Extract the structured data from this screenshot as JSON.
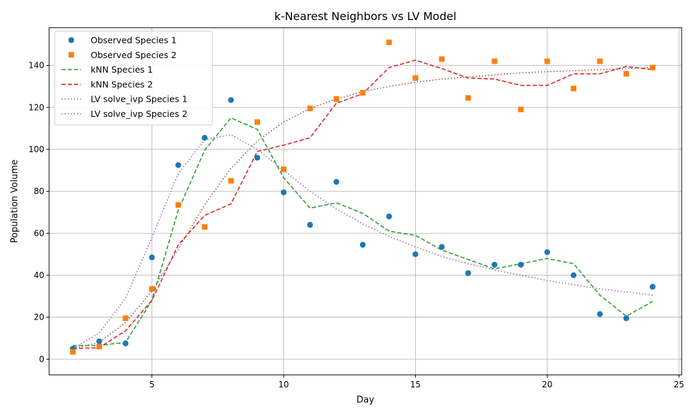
{
  "chart_data": {
    "type": "line",
    "title": "k-Nearest Neighbors vs LV Model",
    "xlabel": "Day",
    "ylabel": "Population Volume",
    "xlim": [
      1.1,
      25.1
    ],
    "ylim": [
      -7.5,
      158.0
    ],
    "xticks": [
      5,
      10,
      15,
      20,
      25
    ],
    "yticks": [
      0,
      20,
      40,
      60,
      80,
      100,
      120,
      140
    ],
    "grid": true,
    "legend_position": "top-left",
    "series": [
      {
        "name": "Observed Species 1",
        "style": "marker-circle",
        "color": "#1f77b4",
        "x": [
          2,
          3,
          4,
          5,
          6,
          7,
          8,
          9,
          10,
          11,
          12,
          13,
          14,
          15,
          16,
          17,
          18,
          19,
          20,
          21,
          22,
          23,
          24
        ],
        "y": [
          5.0,
          8.5,
          7.5,
          48.5,
          92.5,
          105.5,
          123.5,
          96.0,
          79.5,
          64.0,
          84.5,
          54.5,
          68.0,
          50.0,
          53.5,
          41.0,
          45.0,
          45.0,
          51.0,
          40.0,
          21.5,
          19.5,
          34.5
        ]
      },
      {
        "name": "Observed Species 2",
        "style": "marker-square",
        "color": "#ff7f0e",
        "x": [
          2,
          3,
          4,
          5,
          6,
          7,
          8,
          9,
          10,
          11,
          12,
          13,
          14,
          15,
          16,
          17,
          18,
          19,
          20,
          21,
          22,
          23,
          24
        ],
        "y": [
          3.5,
          6.0,
          19.5,
          33.5,
          73.5,
          63.0,
          85.0,
          113.0,
          90.5,
          119.5,
          124.0,
          127.0,
          151.0,
          134.0,
          143.0,
          124.5,
          142.0,
          119.0,
          142.0,
          129.0,
          142.0,
          136.0,
          139.0
        ]
      },
      {
        "name": "kNN Species 1",
        "style": "dashed",
        "color": "#2ca02c",
        "x": [
          2,
          3,
          4,
          5,
          6,
          7,
          8,
          9,
          10,
          11,
          12,
          13,
          14,
          15,
          16,
          17,
          18,
          19,
          20,
          21,
          22,
          23,
          24
        ],
        "y": [
          6.5,
          6.5,
          8.0,
          28.0,
          71.0,
          99.5,
          115.0,
          109.5,
          86.5,
          72.0,
          74.5,
          69.5,
          61.0,
          59.0,
          52.0,
          47.5,
          43.0,
          45.5,
          48.0,
          45.5,
          30.5,
          20.5,
          27.5
        ]
      },
      {
        "name": "kNN Species 2",
        "style": "dashed",
        "color": "#d62728",
        "x": [
          2,
          3,
          4,
          5,
          6,
          7,
          8,
          9,
          10,
          11,
          12,
          13,
          14,
          15,
          16,
          17,
          18,
          19,
          20,
          21,
          22,
          23,
          24
        ],
        "y": [
          5.0,
          5.5,
          13.5,
          28.0,
          54.5,
          68.5,
          74.0,
          99.0,
          102.0,
          105.5,
          122.0,
          126.5,
          139.0,
          142.5,
          138.5,
          134.0,
          133.5,
          130.5,
          130.5,
          136.0,
          136.0,
          139.5,
          138.0
        ]
      },
      {
        "name": "LV solve_ivp Species 1",
        "style": "dotted",
        "color": "#9467bd",
        "x": [
          2,
          3,
          4,
          5,
          6,
          7,
          8,
          9,
          10,
          11,
          12,
          13,
          14,
          15,
          16,
          17,
          18,
          19,
          20,
          21,
          22,
          23,
          24
        ],
        "y": [
          5.0,
          12.5,
          29.0,
          58.0,
          88.5,
          104.5,
          107.0,
          100.0,
          90.0,
          80.0,
          71.5,
          64.5,
          58.5,
          53.5,
          49.0,
          45.5,
          42.5,
          40.0,
          37.5,
          35.5,
          33.5,
          32.0,
          30.5
        ]
      },
      {
        "name": "LV solve_ivp Species 2",
        "style": "dotted",
        "color": "#8c564b",
        "x": [
          2,
          3,
          4,
          5,
          6,
          7,
          8,
          9,
          10,
          11,
          12,
          13,
          14,
          15,
          16,
          17,
          18,
          19,
          20,
          21,
          22,
          23,
          24
        ],
        "y": [
          5.0,
          8.0,
          17.5,
          32.5,
          52.5,
          73.5,
          91.0,
          104.0,
          113.0,
          119.5,
          124.0,
          127.5,
          130.0,
          132.0,
          133.5,
          134.5,
          135.5,
          136.5,
          137.0,
          137.5,
          138.0,
          138.5,
          139.0
        ]
      }
    ]
  }
}
